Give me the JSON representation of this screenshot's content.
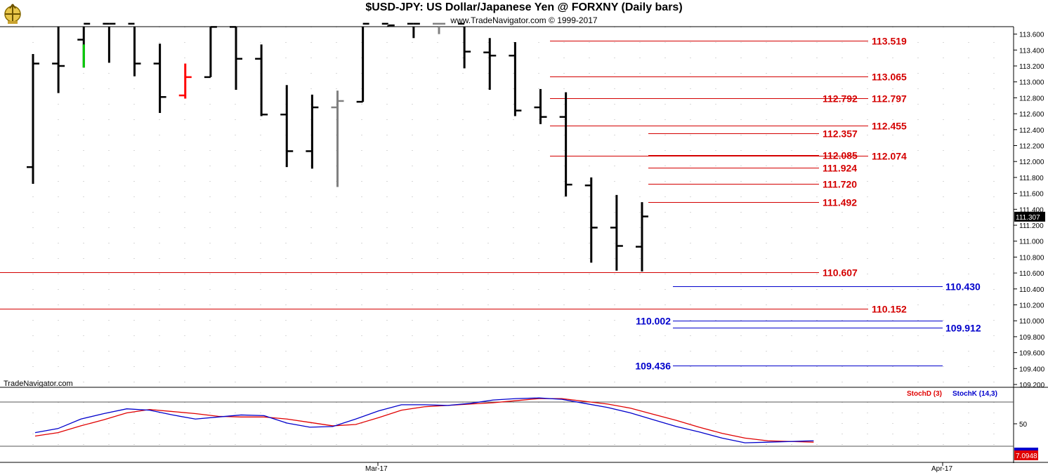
{
  "header": {
    "title": "$USD-JPY:  US Dollar/Japanese Yen @ FORXNY  (Daily bars)",
    "copyright": "www.TradeNavigator.com © 1999-2017",
    "watermark": "TradeNavigator.com"
  },
  "chart_data": {
    "type": "bar",
    "price_axis": {
      "ylim": [
        109.2,
        113.73
      ],
      "ticks": [
        "113.600",
        "113.400",
        "113.200",
        "113.000",
        "112.800",
        "112.600",
        "112.400",
        "112.200",
        "112.000",
        "111.800",
        "111.600",
        "111.400",
        "111.200",
        "111.000",
        "110.800",
        "110.600",
        "110.400",
        "110.200",
        "110.000",
        "109.800",
        "109.600",
        "109.400",
        "109.200"
      ],
      "last_price": "111.307"
    },
    "x_axis": {
      "ticks": [
        "Mar-17",
        "Apr-17"
      ]
    },
    "grid": "dotted",
    "ohlc_bars": [
      {
        "h": 113.35,
        "l": 111.72,
        "o": 111.93,
        "c": 113.23,
        "color": "#000000"
      },
      {
        "h": 113.73,
        "l": 112.86,
        "o": 113.23,
        "c": 113.2,
        "color": "#000000"
      },
      {
        "h": 113.73,
        "l": 113.18,
        "o": 113.53,
        "c": 113.73,
        "color": "#000000"
      },
      {
        "h": 113.73,
        "l": 113.24,
        "o": 113.73,
        "c": 113.73,
        "color": "#000000"
      },
      {
        "h": 113.73,
        "l": 113.07,
        "o": 113.73,
        "c": 113.23,
        "color": "#000000"
      },
      {
        "h": 113.48,
        "l": 112.61,
        "o": 113.23,
        "c": 112.81,
        "color": "#000000"
      },
      {
        "h": 113.23,
        "l": 112.79,
        "o": 112.83,
        "c": 113.06,
        "color": "#ff0000"
      },
      {
        "h": 113.73,
        "l": 113.06,
        "o": 113.06,
        "c": 113.69,
        "color": "#000000"
      },
      {
        "h": 113.73,
        "l": 112.9,
        "o": 113.69,
        "c": 113.29,
        "color": "#000000"
      },
      {
        "h": 113.47,
        "l": 112.57,
        "o": 113.29,
        "c": 112.59,
        "color": "#000000"
      },
      {
        "h": 112.96,
        "l": 111.93,
        "o": 112.59,
        "c": 112.13,
        "color": "#000000"
      },
      {
        "h": 112.84,
        "l": 111.91,
        "o": 112.13,
        "c": 112.68,
        "color": "#000000"
      },
      {
        "h": 112.89,
        "l": 111.68,
        "o": 112.68,
        "c": 112.76,
        "color": "#808080"
      },
      {
        "h": 113.73,
        "l": 112.75,
        "o": 112.75,
        "c": 113.73,
        "color": "#000000"
      },
      {
        "h": 113.73,
        "l": 113.71,
        "o": 113.73,
        "c": 113.71,
        "color": "#000000"
      },
      {
        "h": 113.73,
        "l": 113.55,
        "o": 113.73,
        "c": 113.73,
        "color": "#000000"
      },
      {
        "h": 113.73,
        "l": 113.6,
        "o": 113.73,
        "c": 113.73,
        "color": "#808080"
      },
      {
        "h": 113.73,
        "l": 113.17,
        "o": 113.73,
        "c": 113.38,
        "color": "#000000"
      },
      {
        "h": 113.55,
        "l": 112.9,
        "o": 113.37,
        "c": 113.33,
        "color": "#000000"
      },
      {
        "h": 113.5,
        "l": 112.57,
        "o": 113.33,
        "c": 112.64,
        "color": "#000000"
      },
      {
        "h": 112.91,
        "l": 112.47,
        "o": 112.68,
        "c": 112.56,
        "color": "#000000"
      },
      {
        "h": 112.87,
        "l": 111.56,
        "o": 112.56,
        "c": 111.71,
        "color": "#000000"
      },
      {
        "h": 111.8,
        "l": 110.73,
        "o": 111.7,
        "c": 111.17,
        "color": "#000000"
      },
      {
        "h": 111.58,
        "l": 110.63,
        "o": 111.17,
        "c": 110.94,
        "color": "#000000"
      },
      {
        "h": 111.49,
        "l": 110.62,
        "o": 110.93,
        "c": 111.31,
        "color": "#000000"
      }
    ],
    "levels": [
      {
        "value": 113.519,
        "label": "113.519",
        "color": "#d40000",
        "style": "long-red"
      },
      {
        "value": 113.065,
        "label": "113.065",
        "color": "#d40000",
        "style": "long-red"
      },
      {
        "value": 112.797,
        "label": "112.797",
        "color": "#d40000",
        "style": "long-red"
      },
      {
        "value": 112.792,
        "label": "112.792",
        "color": "#d40000",
        "style": "short-red"
      },
      {
        "value": 112.455,
        "label": "112.455",
        "color": "#d40000",
        "style": "long-red"
      },
      {
        "value": 112.357,
        "label": "112.357",
        "color": "#d40000",
        "style": "short-red"
      },
      {
        "value": 112.085,
        "label": "112.085",
        "color": "#d40000",
        "style": "short-red"
      },
      {
        "value": 112.074,
        "label": "112.074",
        "color": "#d40000",
        "style": "long-red"
      },
      {
        "value": 111.924,
        "label": "111.924",
        "color": "#d40000",
        "style": "short-red"
      },
      {
        "value": 111.72,
        "label": "111.720",
        "color": "#d40000",
        "style": "short-red"
      },
      {
        "value": 111.492,
        "label": "111.492",
        "color": "#d40000",
        "style": "short-red"
      },
      {
        "value": 110.607,
        "label": "110.607",
        "color": "#d40000",
        "style": "full-red"
      },
      {
        "value": 110.43,
        "label": "110.430",
        "color": "#0000cc",
        "style": "blue-right"
      },
      {
        "value": 110.152,
        "label": "110.152",
        "color": "#d40000",
        "style": "full-red"
      },
      {
        "value": 110.002,
        "label": "110.002",
        "color": "#0000cc",
        "style": "blue-left"
      },
      {
        "value": 109.912,
        "label": "109.912",
        "color": "#0000cc",
        "style": "blue-right"
      },
      {
        "value": 109.436,
        "label": "109.436",
        "color": "#0000cc",
        "style": "blue-left"
      }
    ],
    "stochastic": {
      "legend": [
        {
          "name": "StochD (3)",
          "color": "#e00000"
        },
        {
          "name": "StochK (14,3)",
          "color": "#0000cc"
        }
      ],
      "tick": "50",
      "last_value": "7.0948",
      "stoch_k": [
        20,
        26,
        40,
        48,
        55,
        53,
        46,
        40,
        43,
        46,
        45,
        34,
        28,
        29,
        40,
        52,
        61,
        61,
        60,
        63,
        68,
        70,
        71,
        69,
        63,
        57,
        49,
        39,
        29,
        21,
        12,
        5,
        6,
        7,
        8
      ],
      "stoch_d": [
        15,
        20,
        30,
        39,
        49,
        54,
        51,
        48,
        44,
        43,
        43,
        40,
        35,
        30,
        32,
        42,
        53,
        58,
        60,
        62,
        64,
        67,
        70,
        70,
        66,
        62,
        56,
        47,
        38,
        28,
        19,
        12,
        8,
        7,
        6
      ]
    }
  },
  "colors": {
    "red_line": "#d40000",
    "blue_line": "#0000cc",
    "grid": "#b0b0b0"
  }
}
